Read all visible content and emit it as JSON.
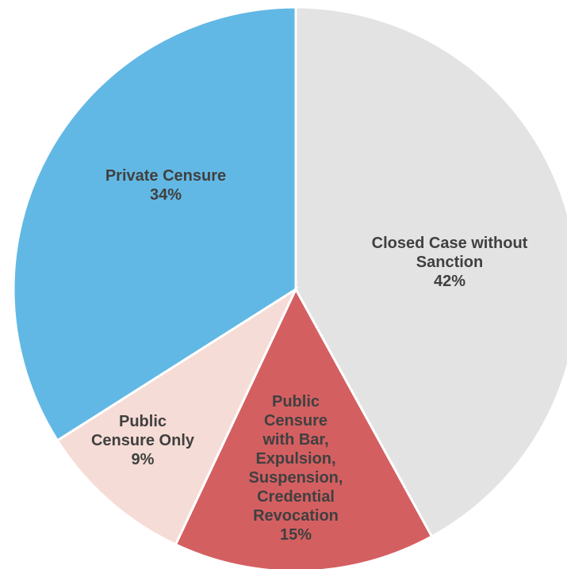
{
  "chart_data": {
    "type": "pie",
    "title": "",
    "start_angle_deg": 0,
    "direction": "clockwise",
    "slices": [
      {
        "label_lines": [
          "Closed Case without",
          "Sanction"
        ],
        "percent_text": "42%",
        "value": 42,
        "color": "#e3e3e3"
      },
      {
        "label_lines": [
          "Public",
          "Censure",
          "with Bar,",
          "Expulsion,",
          "Suspension,",
          "Credential",
          "Revocation"
        ],
        "percent_text": "15%",
        "value": 15,
        "color": "#d45f61"
      },
      {
        "label_lines": [
          "Public",
          "Censure Only"
        ],
        "percent_text": "9%",
        "value": 9,
        "color": "#f6dcd6"
      },
      {
        "label_lines": [
          "Private Censure"
        ],
        "percent_text": "34%",
        "value": 34,
        "color": "#62b8e4"
      }
    ]
  }
}
